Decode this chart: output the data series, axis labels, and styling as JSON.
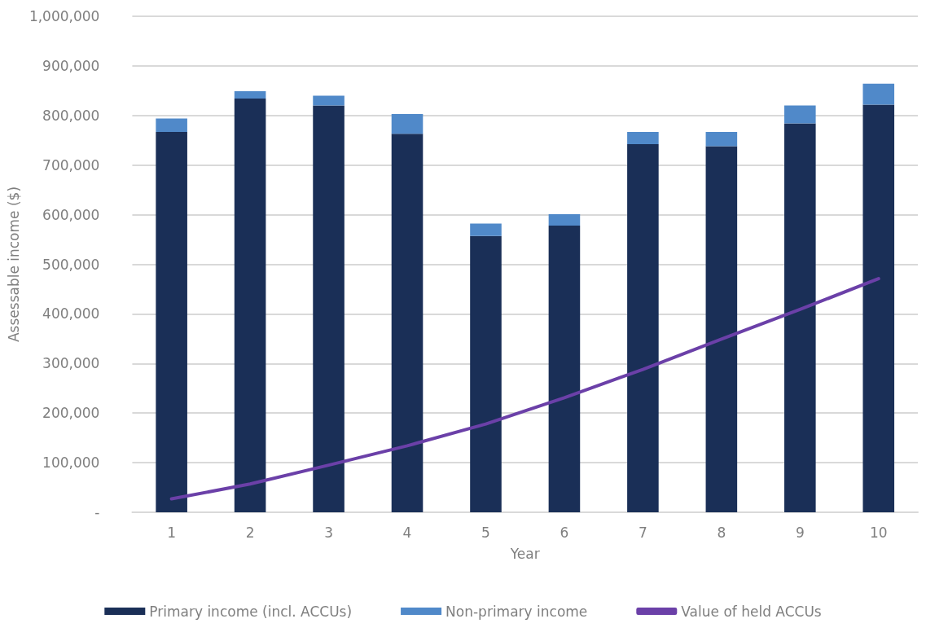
{
  "chart_data": {
    "type": "bar",
    "stacked": true,
    "xlabel": "Year",
    "ylabel": "Assessable income ($)",
    "categories": [
      "1",
      "2",
      "3",
      "4",
      "5",
      "6",
      "7",
      "8",
      "9",
      "10"
    ],
    "series": [
      {
        "name": "Primary income (incl. ACCUs)",
        "color": "#1a2f57",
        "values": [
          767000,
          834000,
          820000,
          763000,
          557000,
          578000,
          742000,
          738000,
          784000,
          822000
        ]
      },
      {
        "name": "Non-primary income",
        "color": "#5089c9",
        "values": [
          27000,
          15000,
          20000,
          40000,
          25000,
          23000,
          25000,
          29000,
          36000,
          42000
        ]
      },
      {
        "name": "Value of held ACCUs",
        "type": "line",
        "color": "#6b40a8",
        "marker": "none",
        "values": [
          27000,
          57000,
          95000,
          134000,
          178000,
          231000,
          288000,
          349000,
          409000,
          471000
        ]
      }
    ],
    "ylim": [
      0,
      1000000
    ],
    "yticks": [
      {
        "value": 0,
        "label": "-"
      },
      {
        "value": 100000,
        "label": "100,000"
      },
      {
        "value": 200000,
        "label": "200,000"
      },
      {
        "value": 300000,
        "label": "300,000"
      },
      {
        "value": 400000,
        "label": "400,000"
      },
      {
        "value": 500000,
        "label": "500,000"
      },
      {
        "value": 600000,
        "label": "600,000"
      },
      {
        "value": 700000,
        "label": "700,000"
      },
      {
        "value": 800000,
        "label": "800,000"
      },
      {
        "value": 900000,
        "label": "900,000"
      },
      {
        "value": 1000000,
        "label": "1,000,000"
      }
    ],
    "grid": "y",
    "legend": "bottom"
  }
}
